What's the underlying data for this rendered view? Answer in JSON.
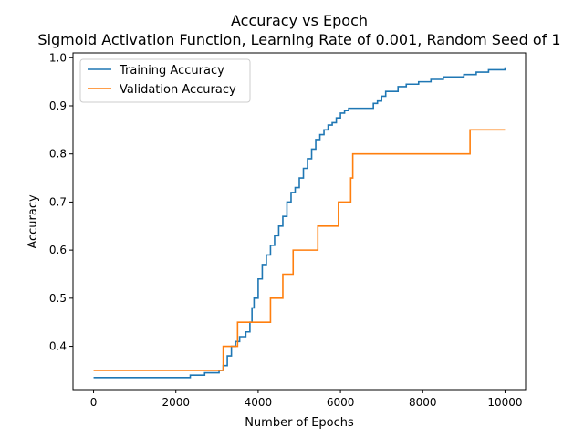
{
  "chart_data": {
    "type": "line",
    "title": "Accuracy vs Epoch",
    "subtitle": "Sigmoid Activation Function, Learning Rate of 0.001, Random Seed of 1",
    "xlabel": "Number of Epochs",
    "ylabel": "Accuracy",
    "xlim": [
      -500,
      10500
    ],
    "ylim": [
      0.31,
      1.01
    ],
    "xticks": [
      0,
      2000,
      4000,
      6000,
      8000,
      10000
    ],
    "xtick_labels": [
      "0",
      "2000",
      "4000",
      "6000",
      "8000",
      "10000"
    ],
    "yticks": [
      0.4,
      0.5,
      0.6,
      0.7,
      0.8,
      0.9,
      1.0
    ],
    "ytick_labels": [
      "0.4",
      "0.5",
      "0.6",
      "0.7",
      "0.8",
      "0.9",
      "1.0"
    ],
    "grid": false,
    "legend_position": "top-left",
    "series": [
      {
        "name": "Training Accuracy",
        "color": "#1f77b4",
        "step": true,
        "x": [
          0,
          2300,
          2350,
          2700,
          3050,
          3150,
          3250,
          3350,
          3450,
          3550,
          3700,
          3800,
          3850,
          3900,
          4000,
          4100,
          4200,
          4300,
          4400,
          4500,
          4600,
          4700,
          4800,
          4900,
          5000,
          5100,
          5200,
          5300,
          5400,
          5500,
          5600,
          5700,
          5800,
          5900,
          6000,
          6100,
          6200,
          6600,
          6800,
          6900,
          7000,
          7100,
          7300,
          7400,
          7600,
          7900,
          8200,
          8500,
          8800,
          9000,
          9300,
          9600,
          9900,
          10000
        ],
        "y": [
          0.335,
          0.335,
          0.34,
          0.345,
          0.35,
          0.36,
          0.38,
          0.4,
          0.41,
          0.42,
          0.43,
          0.45,
          0.48,
          0.5,
          0.54,
          0.57,
          0.59,
          0.61,
          0.63,
          0.65,
          0.67,
          0.7,
          0.72,
          0.73,
          0.75,
          0.77,
          0.79,
          0.81,
          0.83,
          0.84,
          0.85,
          0.86,
          0.865,
          0.875,
          0.885,
          0.89,
          0.895,
          0.895,
          0.905,
          0.91,
          0.92,
          0.93,
          0.93,
          0.94,
          0.945,
          0.95,
          0.955,
          0.96,
          0.96,
          0.965,
          0.97,
          0.975,
          0.975,
          0.98
        ]
      },
      {
        "name": "Validation Accuracy",
        "color": "#ff7f0e",
        "step": true,
        "x": [
          0,
          3150,
          3500,
          4300,
          4600,
          4850,
          5450,
          5950,
          6250,
          6300,
          9150,
          10000
        ],
        "y": [
          0.35,
          0.4,
          0.45,
          0.5,
          0.55,
          0.6,
          0.65,
          0.7,
          0.75,
          0.8,
          0.85,
          0.85
        ]
      }
    ]
  }
}
